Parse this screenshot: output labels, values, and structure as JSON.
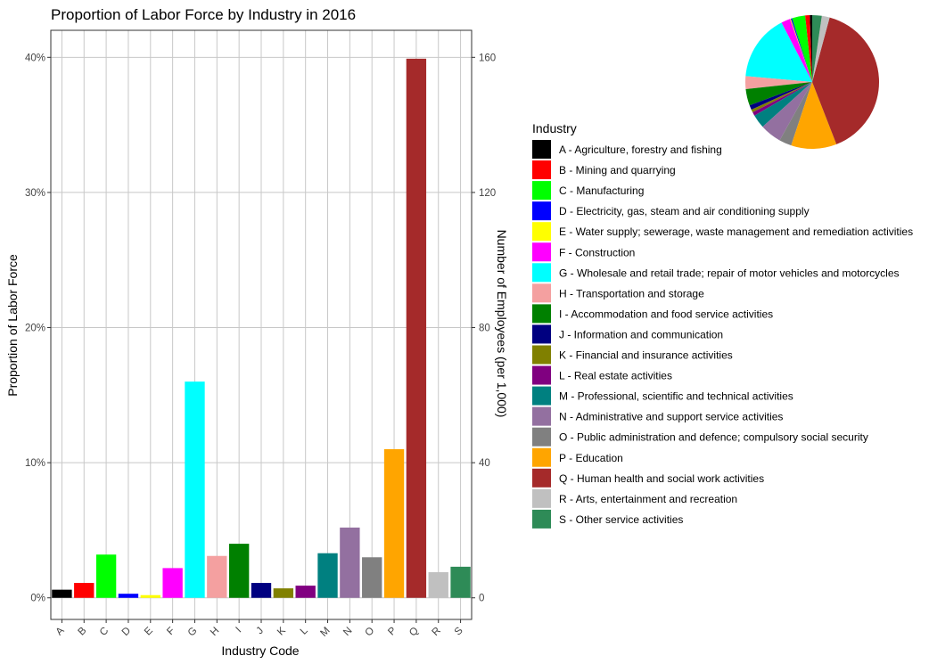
{
  "chart_data": [
    {
      "type": "bar",
      "title": "Proportion of Labor Force by Industry in 2016",
      "xlabel": "Industry Code",
      "ylabel": "Proportion of Labor Force",
      "y2label": "Number of Employees (per 1,000)",
      "categories": [
        "A",
        "B",
        "C",
        "D",
        "E",
        "F",
        "G",
        "H",
        "I",
        "J",
        "K",
        "L",
        "M",
        "N",
        "O",
        "P",
        "Q",
        "R",
        "S"
      ],
      "values": [
        0.6,
        1.1,
        3.2,
        0.3,
        0.2,
        2.2,
        16.0,
        3.1,
        4.0,
        1.1,
        0.7,
        0.9,
        3.3,
        5.2,
        3.0,
        11.0,
        39.9,
        1.9,
        2.3
      ],
      "ylim": [
        -1.6,
        42
      ],
      "yticks": [
        0,
        10,
        20,
        30,
        40
      ],
      "ytick_labels": [
        "0%",
        "10%",
        "20%",
        "30%",
        "40%"
      ],
      "y2ticks": [
        0,
        10,
        20,
        30,
        40
      ],
      "y2tick_labels": [
        "0",
        "40",
        "80",
        "120",
        "160"
      ],
      "grid": true,
      "colors": [
        "#000000",
        "#ff0000",
        "#00ff00",
        "#0000ff",
        "#ffff00",
        "#ff00ff",
        "#00ffff",
        "#f4a0a0",
        "#008000",
        "#000080",
        "#808000",
        "#800080",
        "#008080",
        "#9370a0",
        "#808080",
        "#ffa500",
        "#a52a2a",
        "#c0c0c0",
        "#2e8b57"
      ]
    },
    {
      "type": "pie",
      "values": [
        0.6,
        1.1,
        3.2,
        0.3,
        0.2,
        2.2,
        16.0,
        3.1,
        4.0,
        1.1,
        0.7,
        0.9,
        3.3,
        5.2,
        3.0,
        11.0,
        39.9,
        1.9,
        2.3
      ]
    }
  ],
  "legend": {
    "title": "Industry",
    "placement": "right",
    "items": [
      {
        "label": "A - Agriculture, forestry and fishing",
        "color": "#000000"
      },
      {
        "label": "B - Mining and quarrying",
        "color": "#ff0000"
      },
      {
        "label": "C - Manufacturing",
        "color": "#00ff00"
      },
      {
        "label": "D - Electricity, gas, steam and air conditioning supply",
        "color": "#0000ff"
      },
      {
        "label": "E - Water supply; sewerage, waste management and remediation activities",
        "color": "#ffff00"
      },
      {
        "label": "F - Construction",
        "color": "#ff00ff"
      },
      {
        "label": "G - Wholesale and retail trade; repair of motor vehicles and motorcycles",
        "color": "#00ffff"
      },
      {
        "label": "H - Transportation and storage",
        "color": "#f4a0a0"
      },
      {
        "label": "I - Accommodation and food service activities",
        "color": "#008000"
      },
      {
        "label": "J - Information and communication",
        "color": "#000080"
      },
      {
        "label": "K - Financial and insurance activities",
        "color": "#808000"
      },
      {
        "label": "L - Real estate activities",
        "color": "#800080"
      },
      {
        "label": "M - Professional, scientific and technical activities",
        "color": "#008080"
      },
      {
        "label": "N - Administrative and support service activities",
        "color": "#9370a0"
      },
      {
        "label": "O - Public administration and defence; compulsory social security",
        "color": "#808080"
      },
      {
        "label": "P - Education",
        "color": "#ffa500"
      },
      {
        "label": "Q - Human health and social work activities",
        "color": "#a52a2a"
      },
      {
        "label": "R - Arts, entertainment and recreation",
        "color": "#c0c0c0"
      },
      {
        "label": "S - Other service activities",
        "color": "#2e8b57"
      }
    ]
  }
}
